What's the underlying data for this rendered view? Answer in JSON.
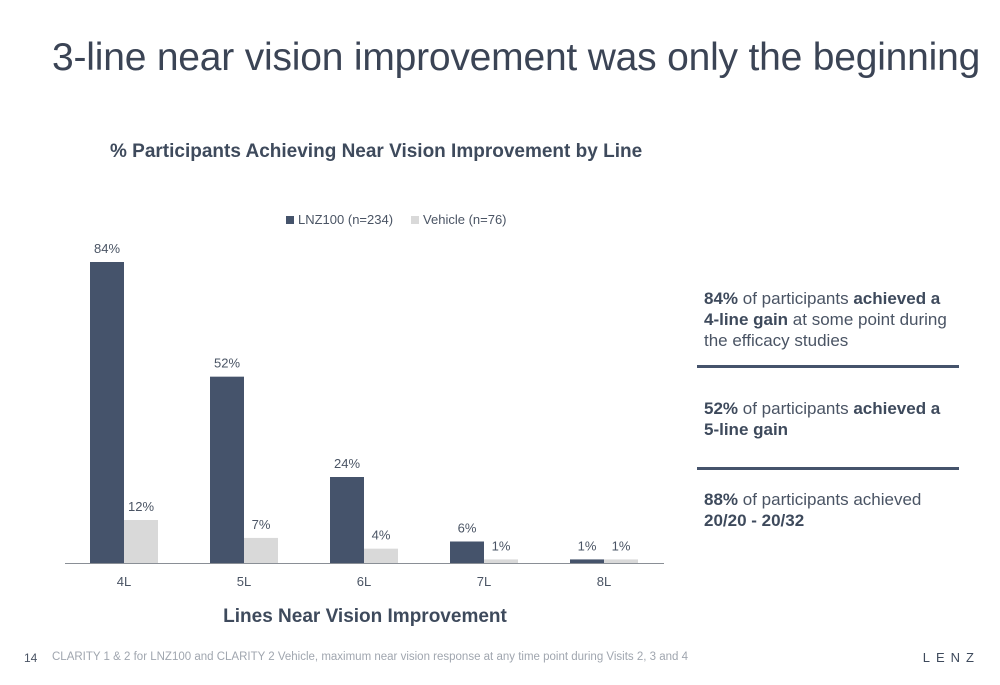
{
  "slide": {
    "title": "3-line near vision improvement was only the beginning",
    "page_number": "14",
    "footnote": "CLARITY 1 & 2 for LNZ100 and CLARITY 2 Vehicle, maximum near vision response at any time point during Visits 2, 3 and 4",
    "logo": "LENZ"
  },
  "chart_data": {
    "type": "bar",
    "title": "% Participants Achieving Near Vision Improvement by Line",
    "xlabel": "Lines Near Vision Improvement",
    "ylabel": "",
    "categories": [
      "4L",
      "5L",
      "6L",
      "7L",
      "8L"
    ],
    "series": [
      {
        "name": "LNZ100 (n=234)",
        "color": "#45536b",
        "values": [
          84,
          52,
          24,
          6,
          1
        ],
        "labels": [
          "84%",
          "52%",
          "24%",
          "6%",
          "1%"
        ]
      },
      {
        "name": "Vehicle (n=76)",
        "color": "#d9d9d9",
        "values": [
          12,
          7,
          4,
          1,
          1
        ],
        "labels": [
          "12%",
          "7%",
          "4%",
          "1%",
          "1%"
        ]
      }
    ],
    "ylim": [
      0,
      84
    ],
    "grid": false,
    "legend_position": "top"
  },
  "callouts": [
    {
      "strong1": "84%",
      "text1": " of participants ",
      "strong2": "achieved a 4-line gain",
      "text2": " at some point during the efficacy studies"
    },
    {
      "strong1": "52%",
      "text1": " of participants ",
      "strong2": "achieved a 5-line gain",
      "text2": ""
    },
    {
      "strong1": "88%",
      "text1": " of participants achieved ",
      "strong2": "20/20 - 20/32",
      "text2": ""
    }
  ]
}
